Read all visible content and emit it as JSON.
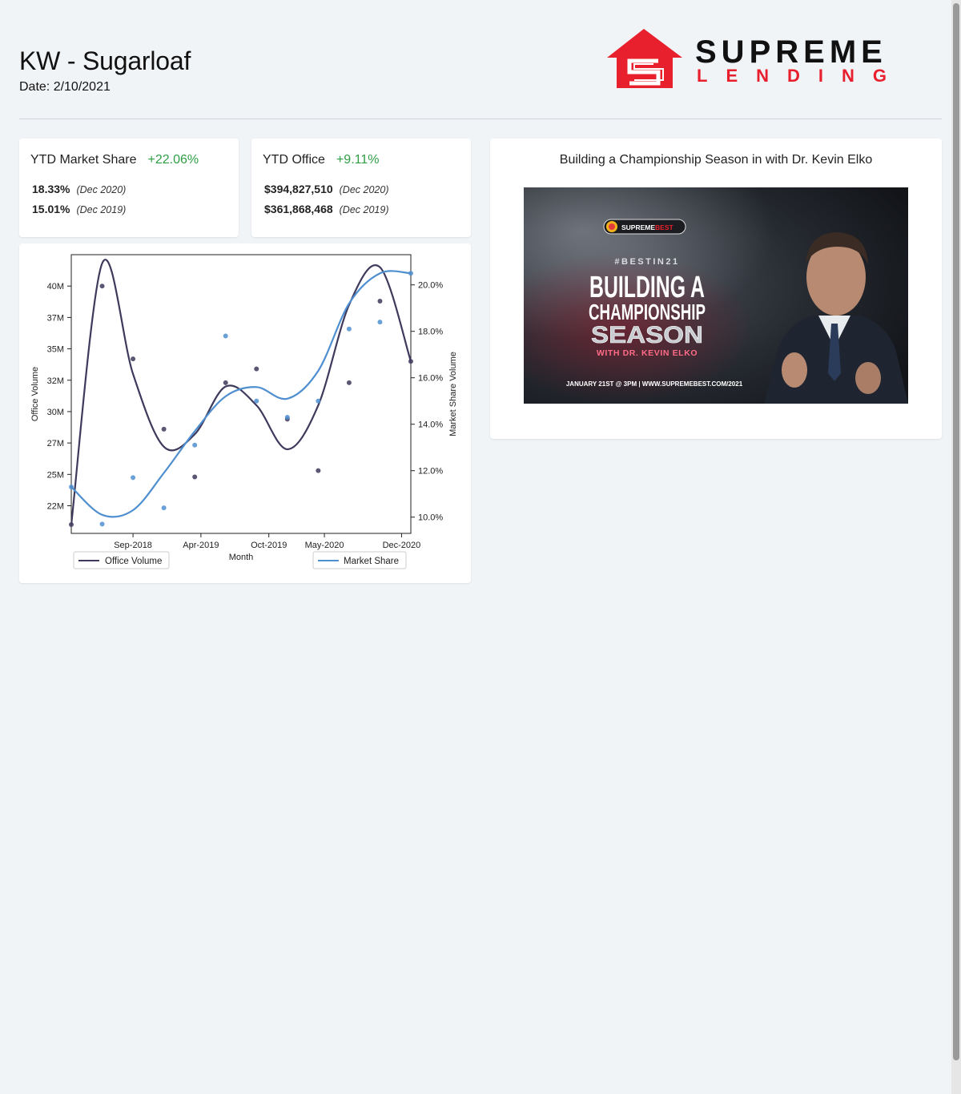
{
  "header": {
    "title": "KW - Sugarloaf",
    "date": "Date: 2/10/2021"
  },
  "logo": {
    "word1": "SUPREME",
    "word2": "LENDING",
    "red": "#e8202e",
    "black": "#111111"
  },
  "stats": [
    {
      "label": "YTD Market Share",
      "change": "+22.06%",
      "rows": [
        {
          "value": "18.33%",
          "period": "(Dec 2020)"
        },
        {
          "value": "15.01%",
          "period": "(Dec 2019)"
        }
      ]
    },
    {
      "label": "YTD Office",
      "change": "+9.11%",
      "rows": [
        {
          "value": "$394,827,510",
          "period": "(Dec 2020)"
        },
        {
          "value": "$361,868,468",
          "period": "(Dec 2019)"
        }
      ]
    }
  ],
  "video": {
    "title": "Building a Championship Season in with Dr. Kevin Elko",
    "brand_prefix": "SUPREME",
    "brand_suffix": "BEST",
    "hashtag": "#BESTIN21",
    "line1": "BUILDING A",
    "line2": "CHAMPIONSHIP",
    "line3": "SEASON",
    "subtitle": "WITH DR. KEVIN ELKO",
    "footer": "JANUARY 21ST @ 3PM  |  WWW.SUPREMEBEST.COM/2021"
  },
  "colors": {
    "green": "#2e9e44",
    "office": "#3d3a5c",
    "market": "#4f8fd0"
  },
  "chart_data": {
    "type": "line",
    "xlabel": "Month",
    "ylabel_left": "Office Volume",
    "ylabel_right": "Market Share Volume",
    "x_ticks": [
      "Sep-2018",
      "Apr-2019",
      "Oct-2019",
      "May-2020",
      "Dec-2020"
    ],
    "y_left_ticks": [
      "22M",
      "25M",
      "27M",
      "30M",
      "32M",
      "35M",
      "37M",
      "40M"
    ],
    "y_left_tick_values": [
      22.5,
      25,
      27.5,
      30,
      32.5,
      35,
      37.5,
      40
    ],
    "y_right_ticks": [
      "10.0%",
      "12.0%",
      "14.0%",
      "16.0%",
      "18.0%",
      "20.0%"
    ],
    "y_right_tick_values": [
      10,
      12,
      14,
      16,
      18,
      20
    ],
    "ylim_left": [
      20.3,
      42.5
    ],
    "ylim_right": [
      9.3,
      21.3
    ],
    "x_months": [
      0,
      1,
      2,
      3,
      4,
      5,
      6,
      7,
      8,
      9,
      10,
      11
    ],
    "series": [
      {
        "name": "Office Volume",
        "axis": "left",
        "points": [
          21.0,
          40.0,
          34.2,
          28.6,
          24.8,
          32.3,
          33.4,
          29.4,
          25.3,
          32.3,
          38.8,
          34.0
        ],
        "curve": [
          21.0,
          41.8,
          33.0,
          27.2,
          28.2,
          32.0,
          30.5,
          27.0,
          30.5,
          38.5,
          41.5,
          34.0
        ]
      },
      {
        "name": "Market Share",
        "axis": "right",
        "points": [
          11.3,
          9.7,
          11.7,
          10.4,
          13.1,
          17.8,
          15.0,
          14.3,
          15.0,
          18.1,
          18.4,
          20.5
        ],
        "curve": [
          11.3,
          10.1,
          10.3,
          11.9,
          13.7,
          15.2,
          15.6,
          15.1,
          16.3,
          19.2,
          20.5,
          20.5
        ]
      }
    ],
    "legend": [
      "Office Volume",
      "Market Share"
    ],
    "grid": false
  }
}
